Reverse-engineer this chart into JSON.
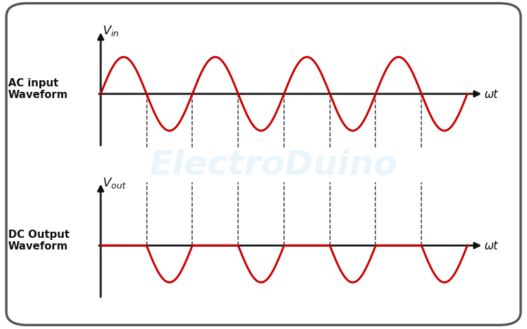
{
  "background_color": "#ffffff",
  "border_color": "#555555",
  "wave_color": "#cc0000",
  "axis_color": "#111111",
  "dashed_color": "#333333",
  "text_color": "#111111",
  "top_label_left": "AC input\nWaveform",
  "bottom_label_left": "DC Output\nWaveform",
  "xlabel": "ωt",
  "amplitude": 1.0,
  "num_cycles": 4,
  "figsize": [
    7.68,
    4.81
  ],
  "dpi": 100
}
